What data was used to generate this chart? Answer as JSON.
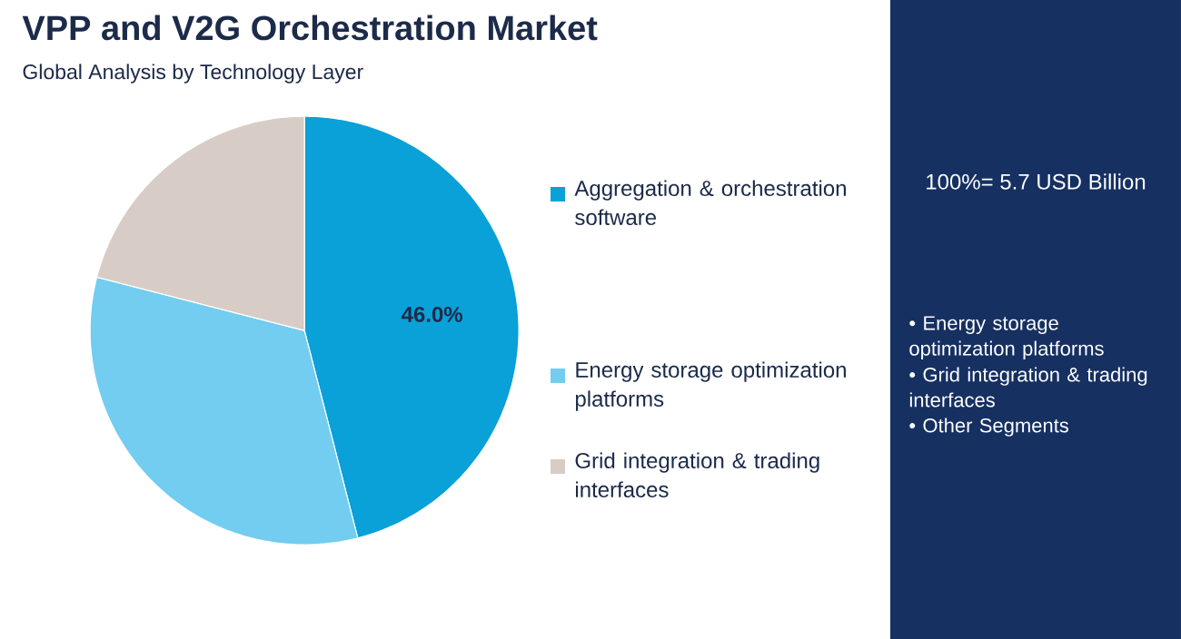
{
  "chart_data": {
    "type": "pie",
    "title": "VPP and V2G Orchestration Market",
    "subtitle": "Global Analysis by Technology Layer",
    "categories": [
      "Aggregation & orchestration software",
      "Energy storage optimization platforms",
      "Grid integration & trading interfaces"
    ],
    "values": [
      46.0,
      33,
      21
    ],
    "colors": [
      "#0aa0d8",
      "#72cdf0",
      "#d8ccc6"
    ],
    "value_labels": [
      "46.0%",
      null,
      null
    ],
    "legend": "right",
    "annotations": [
      "100%= 5.7 USD Billion",
      "• Energy storage optimization platforms",
      "• Grid integration & trading interfaces",
      "• Other Segments"
    ]
  }
}
